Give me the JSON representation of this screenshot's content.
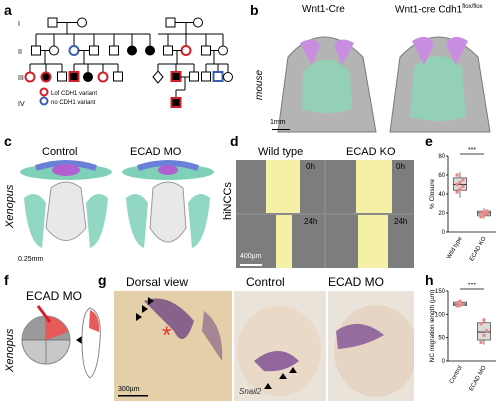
{
  "labels": {
    "a": "a",
    "b": "b",
    "c": "c",
    "d": "d",
    "e": "e",
    "f": "f",
    "g": "g",
    "h": "h"
  },
  "panel_a": {
    "gen": [
      "I",
      "II",
      "III",
      "IV"
    ],
    "legend": [
      "Lof CDH1 variant",
      "no CDH1 variant"
    ],
    "colors": {
      "affected": "#000000",
      "lof": "#d0202a",
      "none": "#3a5fb0"
    }
  },
  "panel_b": {
    "left": "Wnt1-Cre",
    "right": "Wnt1-cre Cdh1",
    "right_sup": "flox/flox",
    "side": "mouse",
    "scale": "1mm"
  },
  "panel_c": {
    "left": "Control",
    "right": "ECAD MO",
    "side": "Xenopus",
    "scale": "0.25mm"
  },
  "panel_d": {
    "left": "Wild type",
    "right": "ECAD KO",
    "t0": "0h",
    "t1": "24h",
    "side": "hiNCCs",
    "scale": "400µm"
  },
  "panel_e": {
    "stars": "***",
    "ylabel": "% Closure",
    "ticks": [
      "0",
      "20",
      "40",
      "60",
      "80"
    ],
    "chart_data": {
      "type": "box",
      "categories": [
        "Wild type",
        "ECAD KO"
      ],
      "series": [
        {
          "values": [
            42,
            45,
            48,
            50,
            52,
            55,
            60
          ],
          "median": 50,
          "q1": 44,
          "q3": 57,
          "min": 36,
          "max": 63,
          "color": "#e58a8a"
        },
        {
          "values": [
            16,
            18,
            19,
            20,
            21,
            22
          ],
          "median": 20,
          "q1": 17,
          "q3": 22,
          "min": 14,
          "max": 25,
          "color": "#e58a8a"
        }
      ],
      "ylim": [
        0,
        80
      ]
    }
  },
  "panel_f": {
    "title": "ECAD MO",
    "side": "Xenopus"
  },
  "panel_g": {
    "t1": "Dorsal view",
    "t2": "Control",
    "t3": "ECAD MO",
    "gene": "Snail2",
    "scale": "300µm"
  },
  "panel_h": {
    "stars": "***",
    "ylabel": "NC migration length (µm)",
    "ticks": [
      "0",
      "50",
      "100",
      "150"
    ],
    "chart_data": {
      "type": "box",
      "categories": [
        "Control",
        "ECAD MO"
      ],
      "series": [
        {
          "values": [
            118,
            120,
            122,
            125,
            128
          ],
          "median": 122,
          "q1": 119,
          "q3": 126,
          "min": 115,
          "max": 130,
          "color": "#e58a8a"
        },
        {
          "values": [
            40,
            55,
            65,
            80,
            88
          ],
          "median": 62,
          "q1": 45,
          "q3": 82,
          "min": 35,
          "max": 90,
          "color": "#e58a8a"
        }
      ],
      "ylim": [
        0,
        150
      ]
    }
  }
}
